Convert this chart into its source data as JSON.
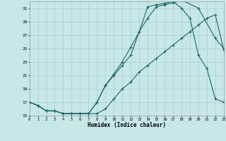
{
  "xlabel": "Humidex (Indice chaleur)",
  "background_color": "#c8e8e8",
  "grid_color": "#a8cccc",
  "line_color": "#1a6666",
  "xlim": [
    0,
    23
  ],
  "ylim": [
    15,
    32
  ],
  "xticks": [
    0,
    1,
    2,
    3,
    4,
    5,
    6,
    7,
    8,
    9,
    10,
    11,
    12,
    13,
    14,
    15,
    16,
    17,
    18,
    19,
    20,
    21,
    22,
    23
  ],
  "yticks": [
    15,
    17,
    19,
    21,
    23,
    25,
    27,
    29,
    31
  ],
  "line1_x": [
    0,
    1,
    2,
    3,
    4,
    5,
    6,
    7,
    8,
    9,
    10,
    11,
    12,
    13,
    14,
    15,
    16,
    17,
    18,
    20,
    22,
    23
  ],
  "line1_y": [
    17,
    16.5,
    15.7,
    15.7,
    15.3,
    15.3,
    15.3,
    15.3,
    17.0,
    19.5,
    21.2,
    23.0,
    25.2,
    27.5,
    29.5,
    31.2,
    31.5,
    31.8,
    32.2,
    31.0,
    26.5,
    25.0
  ],
  "line2_x": [
    0,
    1,
    2,
    3,
    4,
    5,
    6,
    7,
    8,
    9,
    10,
    11,
    12,
    13,
    14,
    15,
    16,
    17,
    18,
    19,
    20,
    21,
    22,
    23
  ],
  "line2_y": [
    17,
    16.5,
    15.7,
    15.7,
    15.3,
    15.3,
    15.3,
    15.3,
    17.0,
    19.5,
    21.0,
    22.5,
    24.0,
    27.5,
    31.2,
    31.5,
    31.7,
    32.0,
    31.0,
    29.5,
    24.0,
    22.0,
    17.5,
    17.0
  ],
  "line3_x": [
    0,
    1,
    2,
    3,
    4,
    5,
    6,
    7,
    8,
    9,
    10,
    11,
    12,
    13,
    14,
    15,
    16,
    17,
    18,
    19,
    20,
    21,
    22,
    23
  ],
  "line3_y": [
    17,
    16.5,
    15.7,
    15.7,
    15.3,
    15.3,
    15.3,
    15.3,
    15.3,
    16.0,
    17.5,
    19.0,
    20.0,
    21.5,
    22.5,
    23.5,
    24.5,
    25.5,
    26.5,
    27.5,
    28.5,
    29.5,
    30.0,
    24.8
  ]
}
